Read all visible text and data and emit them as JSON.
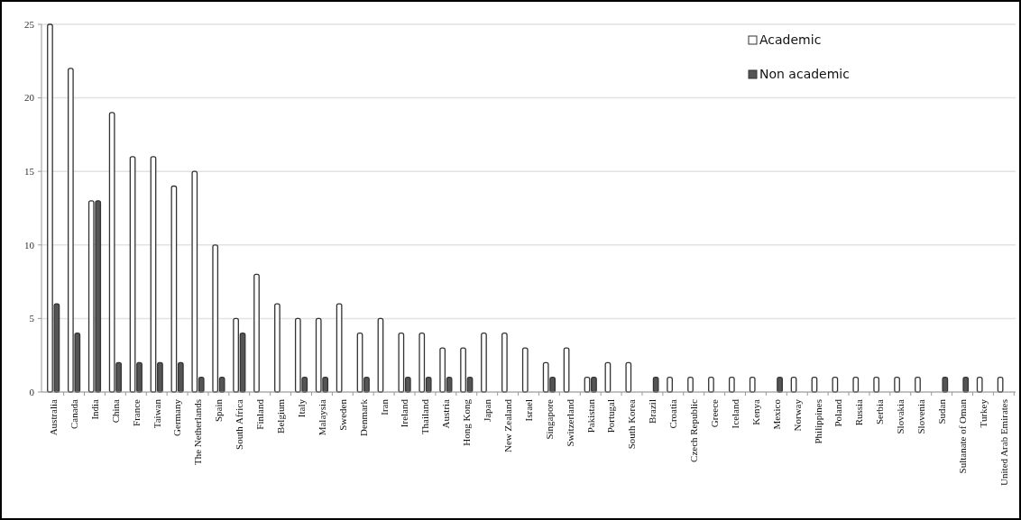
{
  "chart_data": {
    "type": "bar",
    "categories": [
      "Australia",
      "Canada",
      "India",
      "China",
      "France",
      "Taiwan",
      "Germany",
      "The Netherlands",
      "Spain",
      "South Africa",
      "Finland",
      "Belgium",
      "Italy",
      "Malaysia",
      "Sweden",
      "Denmark",
      "Iran",
      "Ireland",
      "Thailand",
      "Austria",
      "Hong Kong",
      "Japan",
      "New Zealand",
      "Israel",
      "Singapore",
      "Switzerland",
      "Pakistan",
      "Portugal",
      "South Korea",
      "Brazil",
      "Croatia",
      "Czech Republic",
      "Greece",
      "Iceland",
      "Kenya",
      "Mexico",
      "Norway",
      "Philippines",
      "Poland",
      "Russia",
      "Serbia",
      "Slovakia",
      "Slovenia",
      "Sudan",
      "Sultanate of Oman",
      "Turkey",
      "United Arab Emirates"
    ],
    "series": [
      {
        "name": "Academic",
        "color": "#ffffff",
        "values": [
          25,
          22,
          13,
          19,
          16,
          16,
          14,
          15,
          10,
          5,
          8,
          6,
          5,
          5,
          6,
          4,
          5,
          4,
          4,
          3,
          3,
          4,
          4,
          3,
          2,
          3,
          1,
          2,
          2,
          0,
          1,
          1,
          1,
          1,
          1,
          0,
          1,
          1,
          1,
          1,
          1,
          1,
          1,
          0,
          0,
          1,
          1
        ]
      },
      {
        "name": "Non academic",
        "color": "#555555",
        "values": [
          6,
          4,
          13,
          2,
          2,
          2,
          2,
          1,
          1,
          4,
          0,
          0,
          1,
          1,
          0,
          1,
          0,
          1,
          1,
          1,
          1,
          0,
          0,
          0,
          1,
          0,
          1,
          0,
          0,
          1,
          0,
          0,
          0,
          0,
          0,
          1,
          0,
          0,
          0,
          0,
          0,
          0,
          0,
          1,
          1,
          0,
          0
        ]
      }
    ],
    "ylim": [
      0,
      25
    ],
    "yticks": [
      0,
      5,
      10,
      15,
      20,
      25
    ],
    "grid": "y",
    "legend": "top right"
  }
}
